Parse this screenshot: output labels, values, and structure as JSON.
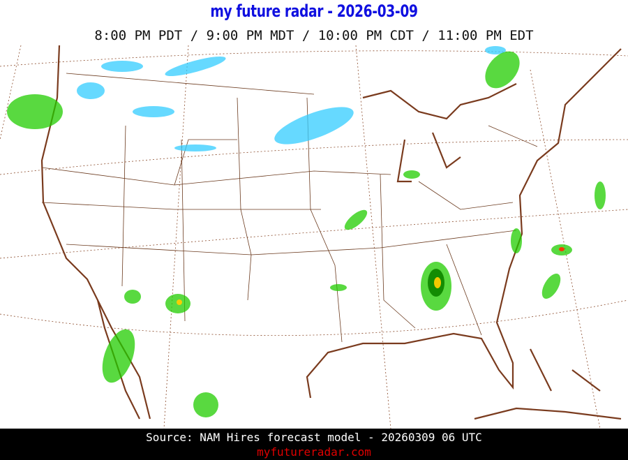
{
  "header": {
    "title": "my future radar - 2026-03-09",
    "times": "8:00 PM PDT /  9:00 PM MDT / 10:00 PM CDT / 11:00 PM EDT"
  },
  "footer": {
    "source": "Source: NAM Hires forecast model - 20260309 06 UTC",
    "site": "myfutureradar.com"
  },
  "map": {
    "region": "Continental United States",
    "colors": {
      "coastline": "#7a3b1e",
      "borders": "#6b3a1e",
      "rain_light": "#22cc00",
      "rain_moderate": "#118800",
      "rain_heavy": "#ffcc00",
      "rain_intense": "#ff3300",
      "snow": "#33ccff"
    }
  }
}
